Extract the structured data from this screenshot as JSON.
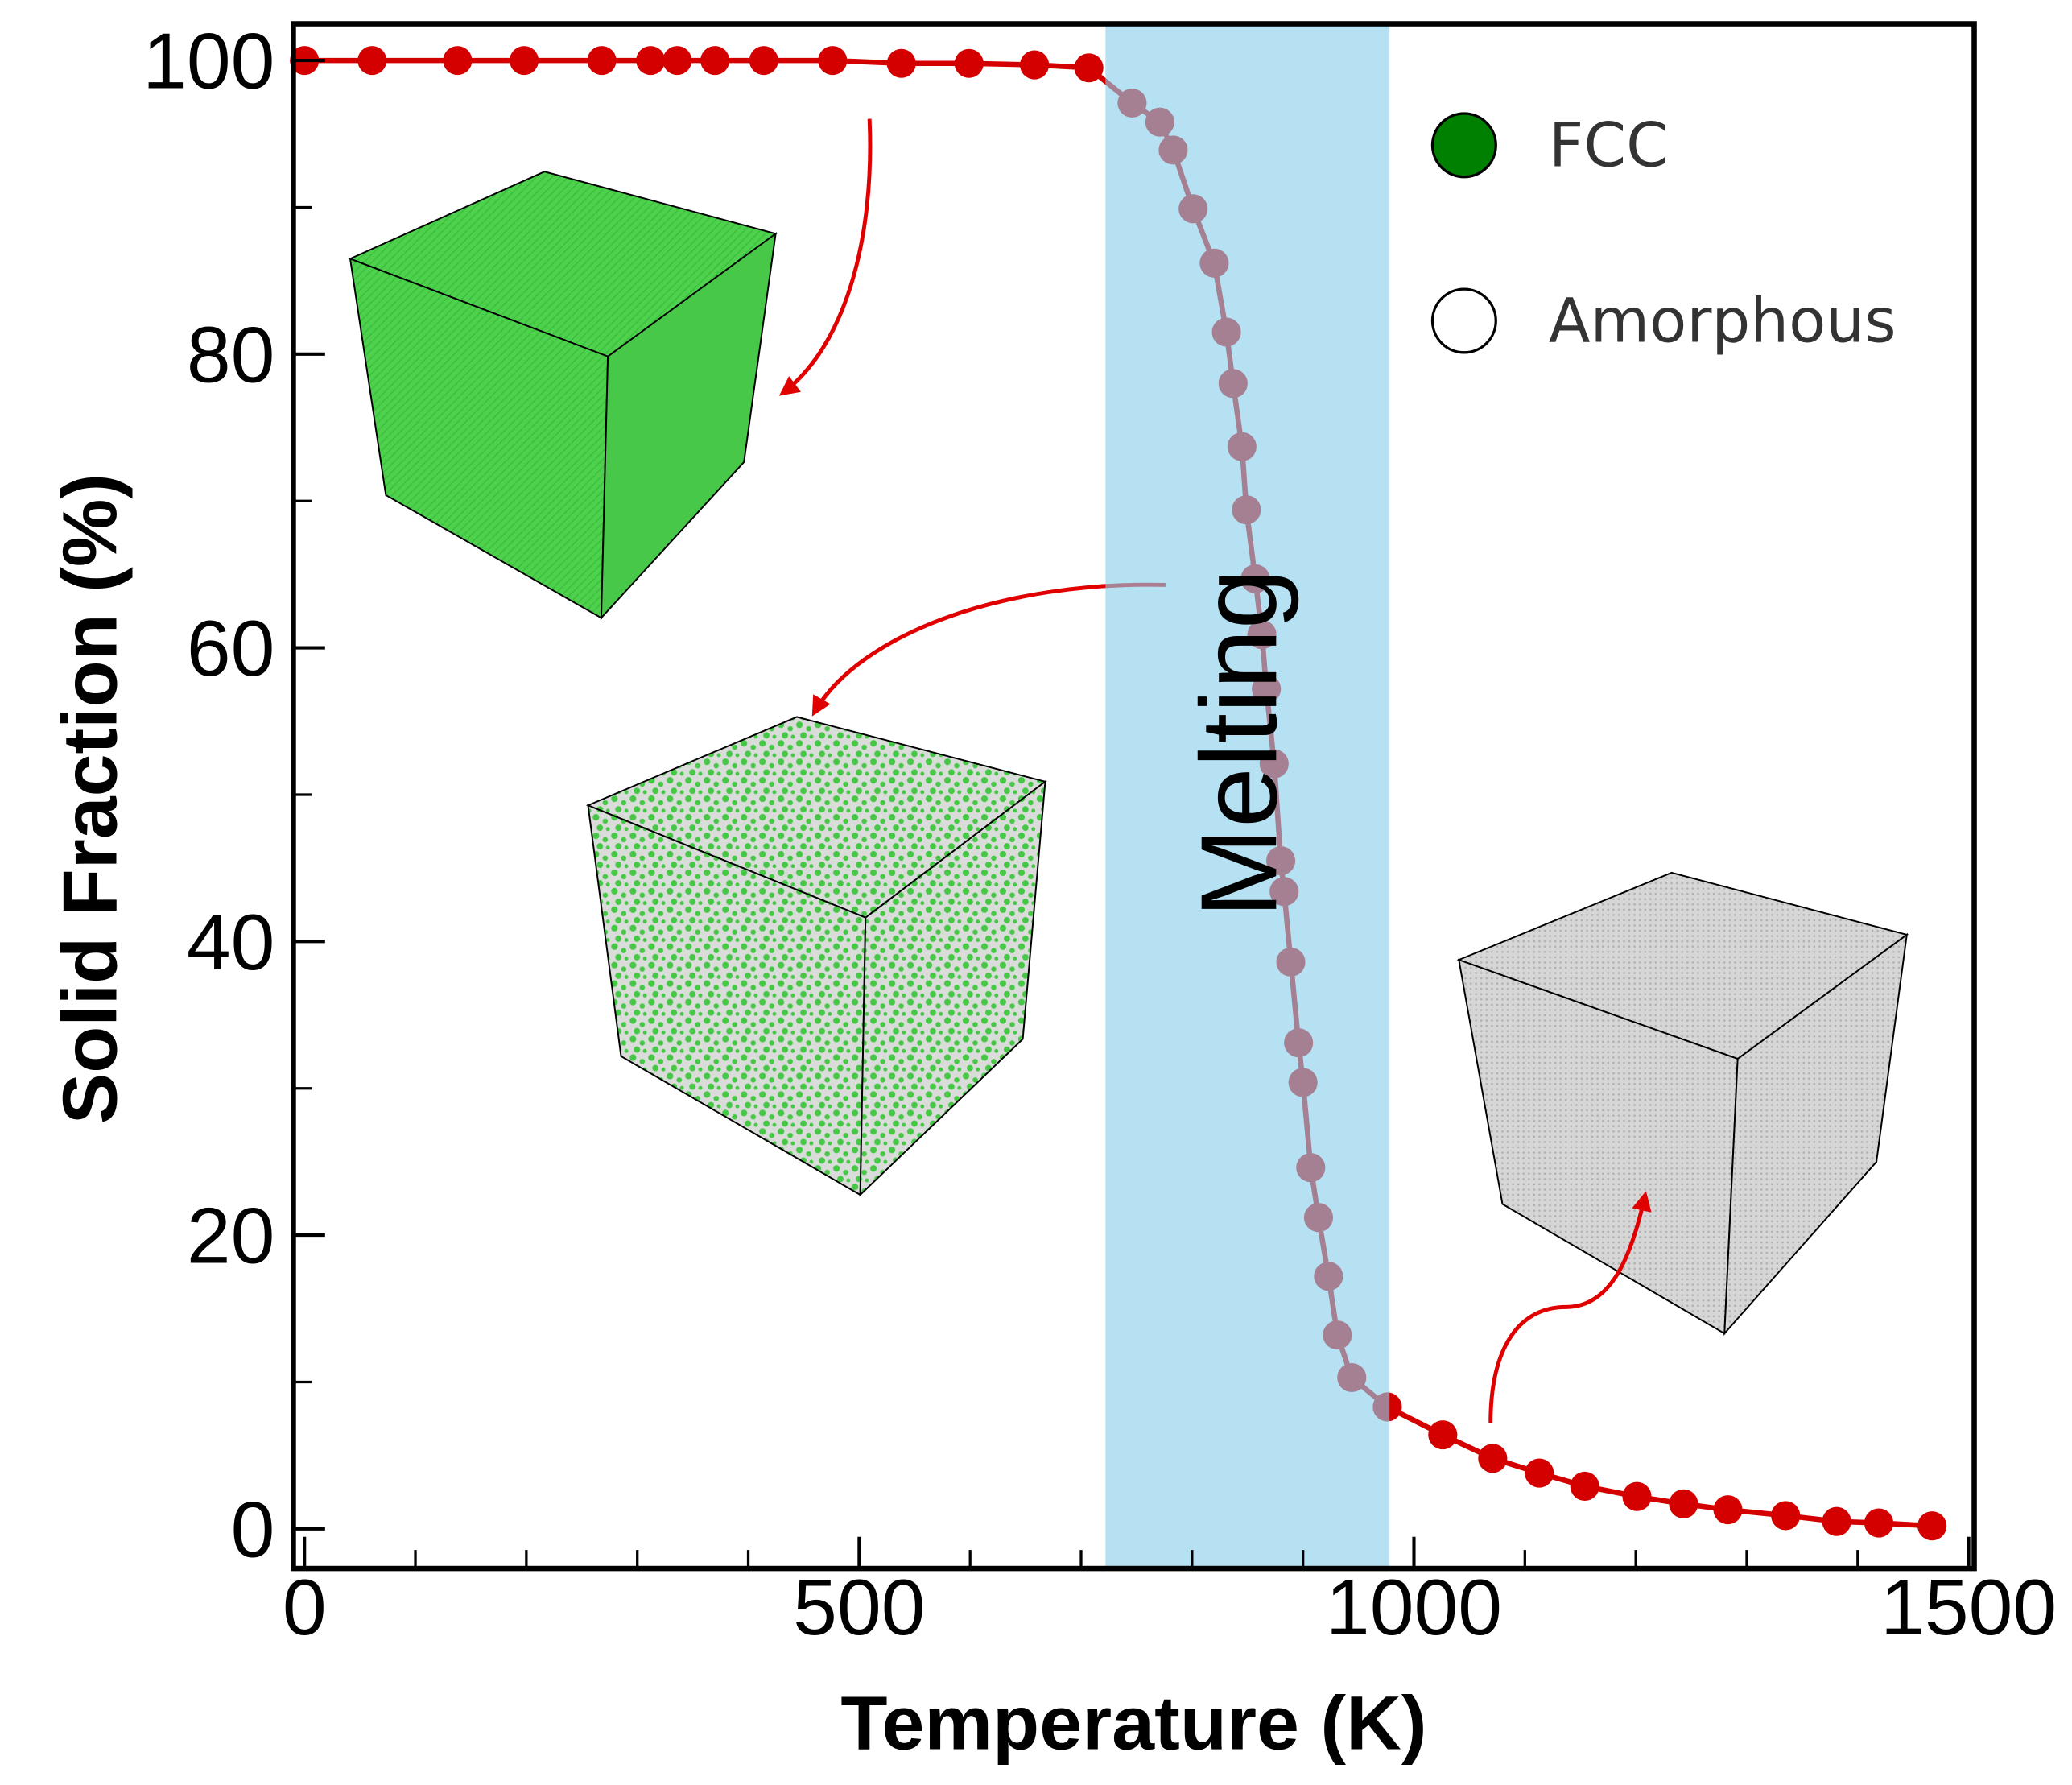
{
  "chart_data": {
    "type": "line",
    "x_label": "Temperature (K)",
    "y_label": "Solid Fraction (%)",
    "xlim": [
      -10,
      1505
    ],
    "ylim": [
      -2.7,
      102.5
    ],
    "xticks": [
      0,
      500,
      1000,
      1500
    ],
    "yticks": [
      0,
      20,
      40,
      60,
      80,
      100
    ],
    "xminorticks": [
      100,
      200,
      300,
      400,
      600,
      700,
      800,
      900,
      1100,
      1200,
      1300,
      1400
    ],
    "yminorticks": [
      10,
      30,
      50,
      70,
      90
    ],
    "series": [
      {
        "color": "#d40000",
        "x": [
          0,
          61,
          138,
          198,
          268,
          312,
          336,
          370,
          414,
          476,
          538,
          599,
          658,
          707,
          746,
          771,
          783,
          801,
          820,
          831,
          837,
          845,
          849,
          857,
          863,
          867,
          874,
          880,
          883,
          889,
          896,
          900,
          907,
          914,
          923,
          931,
          944,
          976,
          1026,
          1071,
          1113,
          1154,
          1201,
          1243,
          1283,
          1335,
          1381,
          1419,
          1467
        ],
        "values": [
          100,
          100,
          100,
          100,
          100,
          100,
          100,
          100,
          100,
          100,
          99.8,
          99.8,
          99.7,
          99.5,
          97.1,
          95.8,
          93.9,
          89.9,
          86.2,
          81.5,
          78.0,
          73.7,
          69.4,
          64.7,
          60.9,
          57.2,
          52.1,
          45.5,
          43.4,
          38.6,
          33.1,
          30.4,
          24.6,
          21.2,
          17.2,
          13.2,
          10.3,
          8.3,
          6.4,
          4.8,
          3.8,
          2.9,
          2.2,
          1.7,
          1.3,
          0.9,
          0.5,
          0.4,
          0.2
        ]
      }
    ],
    "band": {
      "label": "Melting",
      "x": [
        722,
        978
      ],
      "color": "#87ceeb"
    },
    "legend_position": "upper right",
    "legend": [
      {
        "name": "FCC",
        "color": "#008000"
      },
      {
        "name": "Amorphous",
        "color": "#ffffff"
      }
    ]
  }
}
